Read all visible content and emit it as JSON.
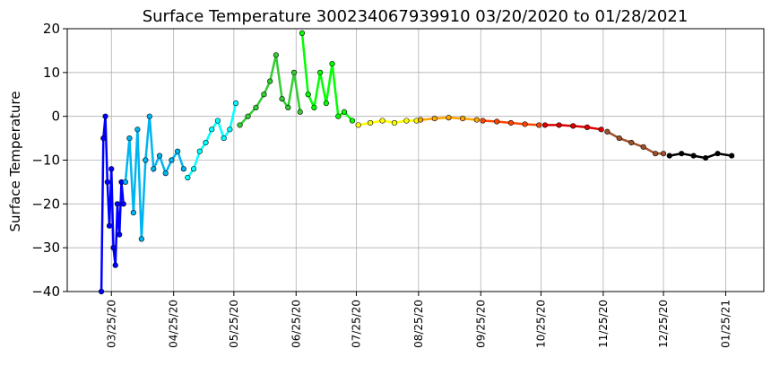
{
  "chart_data": {
    "type": "scatter",
    "title": "Surface Temperature 300234067939910  03/20/2020 to 01/28/2021",
    "y_label": "Surface Temperature",
    "grid": true,
    "xlim": [
      "2020-03-03",
      "2021-02-13"
    ],
    "ylim": [
      -40,
      20
    ],
    "yticks": [
      {
        "value": -40,
        "label": "−40"
      },
      {
        "value": -30,
        "label": "−30"
      },
      {
        "value": -20,
        "label": "−20"
      },
      {
        "value": -10,
        "label": "−10"
      },
      0,
      10,
      20
    ],
    "xticks": [
      {
        "value": "2020-03-25",
        "label": "03/25/20"
      },
      {
        "value": "2020-04-25",
        "label": "04/25/20"
      },
      {
        "value": "2020-05-25",
        "label": "05/25/20"
      },
      {
        "value": "2020-06-25",
        "label": "06/25/20"
      },
      {
        "value": "2020-07-25",
        "label": "07/25/20"
      },
      {
        "value": "2020-08-25",
        "label": "08/25/20"
      },
      {
        "value": "2020-09-25",
        "label": "09/25/20"
      },
      {
        "value": "2020-10-25",
        "label": "10/25/20"
      },
      {
        "value": "2020-11-25",
        "label": "11/25/20"
      },
      {
        "value": "2020-12-25",
        "label": "12/25/20"
      },
      {
        "value": "2021-01-25",
        "label": "01/25/21"
      }
    ],
    "series": [
      {
        "color": "#0000ff",
        "x": [
          "2020-03-20",
          "2020-03-21",
          "2020-03-22",
          "2020-03-23",
          "2020-03-24",
          "2020-03-25",
          "2020-03-26",
          "2020-03-27",
          "2020-03-28",
          "2020-03-29",
          "2020-03-30",
          "2020-03-31"
        ],
        "values": [
          -40,
          -5,
          0,
          -15,
          -25,
          -12,
          -30,
          -34,
          -20,
          -27,
          -15,
          -20
        ]
      },
      {
        "color": "#00b4f0",
        "x": [
          "2020-04-01",
          "2020-04-03",
          "2020-04-05",
          "2020-04-07",
          "2020-04-09",
          "2020-04-11",
          "2020-04-13",
          "2020-04-15",
          "2020-04-18",
          "2020-04-21",
          "2020-04-24",
          "2020-04-27",
          "2020-04-30"
        ],
        "values": [
          -15,
          -5,
          -22,
          -3,
          -28,
          -10,
          0,
          -12,
          -9,
          -13,
          -10,
          -8,
          -12
        ]
      },
      {
        "color": "#00ffff",
        "x": [
          "2020-05-02",
          "2020-05-05",
          "2020-05-08",
          "2020-05-11",
          "2020-05-14",
          "2020-05-17",
          "2020-05-20",
          "2020-05-23",
          "2020-05-26"
        ],
        "values": [
          -14,
          -12,
          -8,
          -6,
          -3,
          -1,
          -5,
          -3,
          3
        ]
      },
      {
        "color": "#32cd32",
        "x": [
          "2020-05-28",
          "2020-06-01",
          "2020-06-05",
          "2020-06-09",
          "2020-06-12",
          "2020-06-15",
          "2020-06-18",
          "2020-06-21",
          "2020-06-24",
          "2020-06-27"
        ],
        "values": [
          -2,
          0,
          2,
          5,
          8,
          14,
          4,
          2,
          10,
          1
        ]
      },
      {
        "color": "#00ff00",
        "x": [
          "2020-06-28",
          "2020-07-01",
          "2020-07-04",
          "2020-07-07",
          "2020-07-10",
          "2020-07-13",
          "2020-07-16",
          "2020-07-19",
          "2020-07-23"
        ],
        "values": [
          19,
          5,
          2,
          10,
          3,
          12,
          0,
          1,
          -1
        ]
      },
      {
        "color": "#ffff00",
        "x": [
          "2020-07-26",
          "2020-08-01",
          "2020-08-07",
          "2020-08-13",
          "2020-08-19",
          "2020-08-24"
        ],
        "values": [
          -2,
          -1.5,
          -1,
          -1.5,
          -1,
          -1
        ]
      },
      {
        "color": "#ffa500",
        "x": [
          "2020-08-26",
          "2020-09-02",
          "2020-09-09",
          "2020-09-16",
          "2020-09-23"
        ],
        "values": [
          -0.8,
          -0.5,
          -0.3,
          -0.5,
          -0.8
        ]
      },
      {
        "color": "#ff4500",
        "x": [
          "2020-09-26",
          "2020-10-03",
          "2020-10-10",
          "2020-10-17",
          "2020-10-24"
        ],
        "values": [
          -1,
          -1.2,
          -1.5,
          -1.8,
          -2
        ]
      },
      {
        "color": "#dd0000",
        "x": [
          "2020-10-27",
          "2020-11-03",
          "2020-11-10",
          "2020-11-17",
          "2020-11-24"
        ],
        "values": [
          -2,
          -2,
          -2.2,
          -2.5,
          -3
        ]
      },
      {
        "color": "#a0522d",
        "x": [
          "2020-11-27",
          "2020-12-03",
          "2020-12-09",
          "2020-12-15",
          "2020-12-21",
          "2020-12-25"
        ],
        "values": [
          -3.5,
          -5,
          -6,
          -7,
          -8.5,
          -8.5
        ]
      },
      {
        "color": "#000000",
        "x": [
          "2020-12-28",
          "2021-01-03",
          "2021-01-09",
          "2021-01-15",
          "2021-01-21",
          "2021-01-28"
        ],
        "values": [
          -9,
          -8.5,
          -9,
          -9.5,
          -8.5,
          -9
        ]
      }
    ]
  }
}
